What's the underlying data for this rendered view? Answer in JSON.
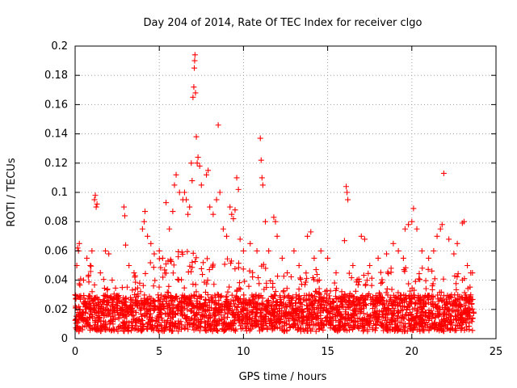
{
  "chart_data": {
    "type": "scatter",
    "title": "Day 204 of 2014, Rate Of TEC Index for receiver clgo",
    "xlabel": "GPS time / hours",
    "ylabel": "ROTI / TECUs",
    "xlim": [
      0,
      25
    ],
    "ylim": [
      0,
      0.2
    ],
    "xticks": [
      0,
      5,
      10,
      15,
      20,
      25
    ],
    "yticks": [
      0,
      0.02,
      0.04,
      0.06,
      0.08,
      0.1,
      0.12,
      0.14,
      0.16,
      0.18,
      0.2
    ],
    "xtick_labels": [
      "0",
      "5",
      "10",
      "15",
      "20",
      "25"
    ],
    "ytick_labels": [
      "0",
      "0.02",
      "0.04",
      "0.06",
      "0.08",
      "0.1",
      "0.12",
      "0.14",
      "0.16",
      "0.18",
      "0.2"
    ],
    "grid": true,
    "marker": "+",
    "color": "#ff0000",
    "series": [
      {
        "name": "ROTI",
        "points": [
          [
            0.0,
            0.03
          ],
          [
            0.1,
            0.05
          ],
          [
            0.15,
            0.062
          ],
          [
            0.2,
            0.06
          ],
          [
            0.25,
            0.065
          ],
          [
            0.3,
            0.02
          ],
          [
            0.5,
            0.04
          ],
          [
            0.7,
            0.055
          ],
          [
            0.9,
            0.05
          ],
          [
            1.0,
            0.06
          ],
          [
            1.15,
            0.095
          ],
          [
            1.2,
            0.098
          ],
          [
            1.25,
            0.09
          ],
          [
            1.3,
            0.092
          ],
          [
            1.5,
            0.045
          ],
          [
            1.8,
            0.06
          ],
          [
            2.0,
            0.058
          ],
          [
            2.2,
            0.04
          ],
          [
            2.5,
            0.025
          ],
          [
            2.8,
            0.035
          ],
          [
            2.9,
            0.09
          ],
          [
            2.95,
            0.084
          ],
          [
            3.0,
            0.064
          ],
          [
            3.2,
            0.05
          ],
          [
            3.5,
            0.045
          ],
          [
            4.0,
            0.075
          ],
          [
            4.1,
            0.08
          ],
          [
            4.15,
            0.087
          ],
          [
            4.3,
            0.07
          ],
          [
            4.5,
            0.065
          ],
          [
            4.7,
            0.058
          ],
          [
            5.0,
            0.06
          ],
          [
            5.2,
            0.055
          ],
          [
            5.4,
            0.093
          ],
          [
            5.6,
            0.075
          ],
          [
            5.8,
            0.087
          ],
          [
            5.9,
            0.105
          ],
          [
            6.0,
            0.112
          ],
          [
            6.2,
            0.1
          ],
          [
            6.4,
            0.095
          ],
          [
            6.5,
            0.1
          ],
          [
            6.6,
            0.095
          ],
          [
            6.7,
            0.085
          ],
          [
            6.8,
            0.09
          ],
          [
            6.9,
            0.12
          ],
          [
            6.95,
            0.108
          ],
          [
            7.0,
            0.165
          ],
          [
            7.05,
            0.172
          ],
          [
            7.08,
            0.185
          ],
          [
            7.1,
            0.19
          ],
          [
            7.12,
            0.194
          ],
          [
            7.15,
            0.168
          ],
          [
            7.2,
            0.138
          ],
          [
            7.25,
            0.12
          ],
          [
            7.3,
            0.124
          ],
          [
            7.4,
            0.118
          ],
          [
            7.5,
            0.105
          ],
          [
            7.8,
            0.112
          ],
          [
            7.9,
            0.115
          ],
          [
            8.0,
            0.09
          ],
          [
            8.2,
            0.085
          ],
          [
            8.4,
            0.095
          ],
          [
            8.5,
            0.146
          ],
          [
            8.6,
            0.1
          ],
          [
            8.8,
            0.075
          ],
          [
            9.0,
            0.07
          ],
          [
            9.2,
            0.09
          ],
          [
            9.3,
            0.085
          ],
          [
            9.4,
            0.082
          ],
          [
            9.5,
            0.088
          ],
          [
            9.6,
            0.11
          ],
          [
            9.7,
            0.102
          ],
          [
            9.8,
            0.068
          ],
          [
            10.0,
            0.06
          ],
          [
            10.4,
            0.065
          ],
          [
            10.8,
            0.06
          ],
          [
            11.0,
            0.137
          ],
          [
            11.05,
            0.122
          ],
          [
            11.1,
            0.11
          ],
          [
            11.15,
            0.105
          ],
          [
            11.3,
            0.08
          ],
          [
            11.5,
            0.06
          ],
          [
            11.8,
            0.083
          ],
          [
            11.9,
            0.08
          ],
          [
            12.0,
            0.07
          ],
          [
            12.3,
            0.055
          ],
          [
            12.6,
            0.045
          ],
          [
            13.0,
            0.06
          ],
          [
            13.3,
            0.05
          ],
          [
            13.8,
            0.07
          ],
          [
            14.0,
            0.073
          ],
          [
            14.2,
            0.055
          ],
          [
            14.6,
            0.06
          ],
          [
            15.0,
            0.055
          ],
          [
            15.5,
            0.045
          ],
          [
            16.0,
            0.067
          ],
          [
            16.1,
            0.104
          ],
          [
            16.15,
            0.1
          ],
          [
            16.2,
            0.095
          ],
          [
            16.5,
            0.05
          ],
          [
            17.0,
            0.07
          ],
          [
            17.2,
            0.068
          ],
          [
            17.5,
            0.05
          ],
          [
            18.0,
            0.055
          ],
          [
            18.5,
            0.058
          ],
          [
            18.9,
            0.065
          ],
          [
            19.2,
            0.06
          ],
          [
            19.5,
            0.055
          ],
          [
            19.6,
            0.075
          ],
          [
            19.8,
            0.078
          ],
          [
            20.0,
            0.08
          ],
          [
            20.1,
            0.089
          ],
          [
            20.3,
            0.075
          ],
          [
            20.6,
            0.06
          ],
          [
            21.0,
            0.055
          ],
          [
            21.3,
            0.06
          ],
          [
            21.5,
            0.07
          ],
          [
            21.7,
            0.075
          ],
          [
            21.8,
            0.078
          ],
          [
            21.9,
            0.113
          ],
          [
            22.2,
            0.068
          ],
          [
            22.5,
            0.058
          ],
          [
            22.7,
            0.065
          ],
          [
            23.0,
            0.079
          ],
          [
            23.1,
            0.08
          ],
          [
            23.3,
            0.05
          ],
          [
            23.5,
            0.045
          ],
          [
            23.6,
            0.045
          ]
        ]
      }
    ],
    "dense_band": {
      "note": "bulk of points lying between ROTI 0.005 and 0.03 across the whole day",
      "x_start": 0.0,
      "x_end": 23.7,
      "y_min": 0.005,
      "y_max": 0.03,
      "envelope_x": [
        0,
        1,
        2,
        3,
        4,
        5,
        6,
        7,
        8,
        9,
        10,
        11,
        12,
        13,
        14,
        15,
        16,
        17,
        18,
        19,
        20,
        21,
        22,
        23,
        23.7
      ],
      "envelope_y": [
        0.045,
        0.05,
        0.04,
        0.035,
        0.05,
        0.055,
        0.06,
        0.06,
        0.055,
        0.06,
        0.05,
        0.055,
        0.045,
        0.045,
        0.05,
        0.045,
        0.045,
        0.045,
        0.045,
        0.05,
        0.05,
        0.05,
        0.045,
        0.045,
        0.04
      ]
    }
  }
}
